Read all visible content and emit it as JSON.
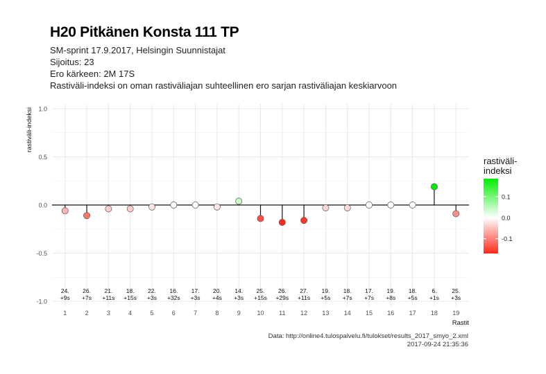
{
  "header": {
    "title": "H20 Pitkänen Konsta 111 TP",
    "subtitle_lines": [
      "SM-sprint 17.9.2017, Helsingin Suunnistajat",
      "Sijoitus: 23",
      "Ero kärkeen: 2M 17S",
      "Rastiväli-indeksi on oman rastiväliajan suhteellinen ero sarjan rastiväliajan keskiarvoon"
    ]
  },
  "caption": {
    "source": "Data: http://online4.tulospalvelu.fi/tulokset/results_2017_smyo_2.xml",
    "timestamp": "2017-09-24 21:35:36"
  },
  "chart_data": {
    "type": "scatter",
    "style": "lollipop",
    "xlabel": "Rastit",
    "ylabel": "rastiväli-indeksi",
    "ylim": [
      -1.05,
      1.05
    ],
    "yticks": [
      -1.0,
      -0.5,
      0.0,
      0.5,
      1.0
    ],
    "ytick_labels": [
      "-1.0",
      "-0.5",
      "0.0",
      "0.5",
      "1.0"
    ],
    "xlim": [
      0.4,
      19.6
    ],
    "x": [
      1,
      2,
      3,
      4,
      5,
      6,
      7,
      8,
      9,
      10,
      11,
      12,
      13,
      14,
      15,
      16,
      17,
      18,
      19
    ],
    "y": [
      -0.06,
      -0.11,
      -0.04,
      -0.04,
      -0.02,
      0.0,
      0.0,
      -0.02,
      0.04,
      -0.14,
      -0.18,
      -0.16,
      -0.03,
      -0.03,
      0.0,
      0.0,
      0.0,
      0.19,
      -0.09
    ],
    "point_labels": [
      [
        "24.",
        "+9s"
      ],
      [
        "26.",
        "+7s"
      ],
      [
        "21.",
        "+11s"
      ],
      [
        "18.",
        "+15s"
      ],
      [
        "22.",
        "+3s"
      ],
      [
        "16.",
        "+32s"
      ],
      [
        "17.",
        "+3s"
      ],
      [
        "20.",
        "+4s"
      ],
      [
        "14.",
        "+3s"
      ],
      [
        "25.",
        "+15s"
      ],
      [
        "26.",
        "+29s"
      ],
      [
        "27.",
        "+11s"
      ],
      [
        "19.",
        "+5s"
      ],
      [
        "18.",
        "+7s"
      ],
      [
        "17.",
        "+7s"
      ],
      [
        "19.",
        "+8s"
      ],
      [
        "18.",
        "+5s"
      ],
      [
        "6.",
        "+1s"
      ],
      [
        "25.",
        "+3s"
      ]
    ],
    "label_y_value": -0.92,
    "grid": true,
    "legend": {
      "title": "rastiväli-\nindeksi",
      "placement": "right",
      "ticks": [
        0.1,
        0.0,
        -0.1
      ],
      "tick_labels": [
        "0.1",
        "0.0",
        "-0.1"
      ],
      "range": [
        -0.17,
        0.185
      ]
    },
    "colors": {
      "low": "#ff2a1a",
      "mid": "#ffffff",
      "high": "#00ee00",
      "grid": "#e8e8e8",
      "axis_text": "#4d4d4d"
    }
  }
}
